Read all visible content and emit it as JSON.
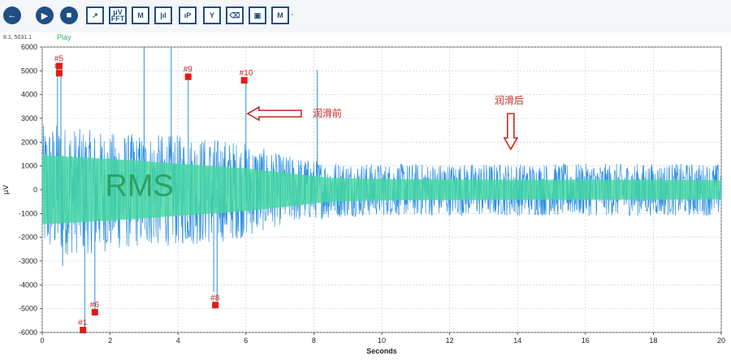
{
  "toolbar": {
    "buttons": [
      {
        "name": "back-button",
        "icon": "back-arrow-icon",
        "glyph": "←",
        "shape": "round"
      },
      {
        "name": "play-button",
        "icon": "play-icon",
        "glyph": "▶",
        "shape": "round"
      },
      {
        "name": "stop-button",
        "icon": "stop-icon",
        "glyph": "■",
        "shape": "round"
      },
      {
        "name": "export-button",
        "icon": "export-icon",
        "glyph": "↗",
        "shape": "square"
      },
      {
        "name": "fft-button",
        "icon": "fft-icon",
        "glyph": "μV\nFFT",
        "shape": "square"
      },
      {
        "name": "marker-button",
        "icon": "marker-icon",
        "glyph": "M",
        "shape": "square"
      },
      {
        "name": "amplitude-button",
        "icon": "amplitude-icon",
        "glyph": "|ıl",
        "shape": "square"
      },
      {
        "name": "peak-button",
        "icon": "peak-icon",
        "glyph": "ıP",
        "shape": "square"
      },
      {
        "name": "y-scale-button",
        "icon": "y-axis-icon",
        "glyph": "Y",
        "shape": "square"
      },
      {
        "name": "eraser-button",
        "icon": "eraser-icon",
        "glyph": "⌫",
        "shape": "square"
      },
      {
        "name": "save-button",
        "icon": "save-icon",
        "glyph": "▣",
        "shape": "square"
      },
      {
        "name": "marker-menu-button",
        "icon": "marker-menu-icon",
        "glyph": "M",
        "shape": "square"
      }
    ],
    "dropdown_glyph": "·"
  },
  "status": {
    "coords": "8.1, 5031.1",
    "play_label": "Play"
  },
  "chart_data": {
    "type": "line",
    "xlabel": "Seconds",
    "ylabel": "μV",
    "xlim": [
      0,
      20
    ],
    "ylim": [
      -6000,
      6000
    ],
    "x_ticks": [
      0,
      2,
      4,
      6,
      8,
      10,
      12,
      14,
      16,
      18,
      20
    ],
    "y_ticks": [
      6000,
      5000,
      4000,
      3000,
      2000,
      1000,
      0,
      -1000,
      -2000,
      -3000,
      -4000,
      -5000,
      -6000
    ],
    "grid": true,
    "colors": {
      "signal": "#2a8fe0",
      "rms": "#44d8a0",
      "marker": "#e41b17",
      "annotation": "#c8281e",
      "grid": "#b9cde0",
      "axis": "#333333"
    },
    "envelope": {
      "x": [
        0,
        0.5,
        1,
        1.5,
        2,
        3,
        4,
        5,
        6,
        7,
        8,
        9,
        10,
        12,
        14,
        16,
        18,
        20
      ],
      "upper": [
        2700,
        2800,
        2600,
        2500,
        2400,
        2350,
        2300,
        2200,
        2000,
        1500,
        1250,
        1150,
        1100,
        1100,
        1100,
        1100,
        1100,
        1100
      ],
      "lower": [
        -2700,
        -2800,
        -2700,
        -2700,
        -2600,
        -2400,
        -2350,
        -2300,
        -2000,
        -1500,
        -1250,
        -1150,
        -1100,
        -1100,
        -1100,
        -1100,
        -1100,
        -1100
      ]
    },
    "rms_band": {
      "x": [
        0,
        2,
        4,
        6,
        8.5,
        10,
        12,
        14,
        16,
        18,
        20
      ],
      "upper": [
        1450,
        1300,
        1100,
        900,
        500,
        450,
        430,
        420,
        420,
        420,
        400
      ],
      "lower": [
        -1450,
        -1300,
        -1100,
        -900,
        -500,
        -450,
        -430,
        -420,
        -420,
        -420,
        -400
      ]
    },
    "spikes": [
      {
        "x": 0.45,
        "y": 5100
      },
      {
        "x": 0.55,
        "y": 4800
      },
      {
        "x": 0.6,
        "y": -3200
      },
      {
        "x": 1.25,
        "y": -5800
      },
      {
        "x": 1.55,
        "y": -5100
      },
      {
        "x": 3.0,
        "y": 6000
      },
      {
        "x": 3.8,
        "y": 6000
      },
      {
        "x": 4.3,
        "y": 4700
      },
      {
        "x": 5.05,
        "y": -4300
      },
      {
        "x": 5.15,
        "y": -4700
      },
      {
        "x": 6.0,
        "y": 4500
      },
      {
        "x": 8.1,
        "y": 5031.1
      }
    ],
    "markers": [
      {
        "label": "#5",
        "x": 0.5,
        "y": 5200
      },
      {
        "label": "#7",
        "x": 0.5,
        "y": 4900
      },
      {
        "label": "#9",
        "x": 4.3,
        "y": 4750
      },
      {
        "label": "#10",
        "x": 5.95,
        "y": 4600
      },
      {
        "label": "#1",
        "x": 1.2,
        "y": -5900
      },
      {
        "label": "#6",
        "x": 1.55,
        "y": -5150
      },
      {
        "label": "#8",
        "x": 5.1,
        "y": -4850
      }
    ],
    "annotations": {
      "rms_label": "RMS",
      "before_label": "润滑前",
      "after_label": "润滑后"
    }
  }
}
